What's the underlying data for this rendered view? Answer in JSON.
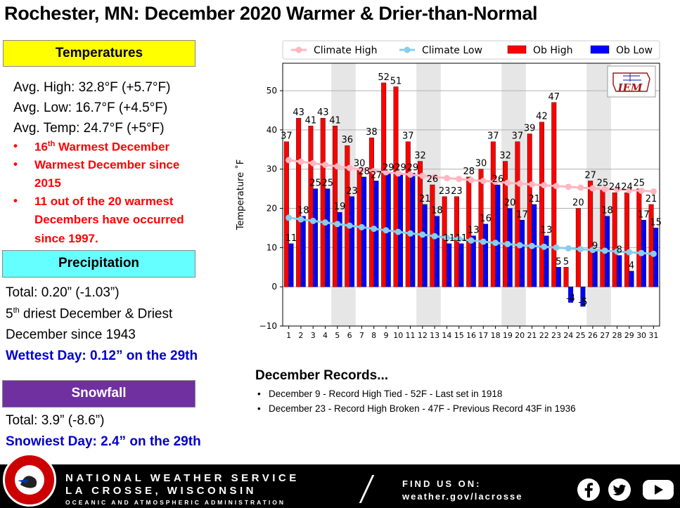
{
  "title": "Rochester, MN:  December 2020 Warmer & Drier-than-Normal",
  "temperatures": {
    "header": "Temperatures",
    "avg_high": "Avg. High:  32.8°F (+5.7°F)",
    "avg_low": "Avg. Low:  16.7°F (+4.5°F)",
    "avg_temp": "Avg. Temp:  24.7°F (+5°F)",
    "bullet1_num": "16",
    "bullet1_sup": "th",
    "bullet1_rest": " Warmest December",
    "bullet2_line1": "Warmest December since",
    "bullet2_line2": "2015",
    "bullet3_line1": "11 out of the 20 warmest",
    "bullet3_line2": "Decembers have occurred",
    "bullet3_line3": "since 1997."
  },
  "precipitation": {
    "header": "Precipitation",
    "total": "Total:  0.20” (-1.03”)",
    "line2_num": "5",
    "line2_sup": "th",
    "line2_rest": " driest December & Driest",
    "line3": "December since 1943",
    "wettest": "Wettest Day: 0.12” on the 29th"
  },
  "snowfall": {
    "header": "Snowfall",
    "total": "Total:  3.9” (-8.6”)",
    "snowiest": "Snowiest Day:  2.4” on the 29th"
  },
  "records": {
    "title": "December Records...",
    "items": [
      "December 9 - Record High Tied - 52F - Last set in 1918",
      "December 23 - Record High Broken - 47F - Previous Record 43F in 1936"
    ]
  },
  "footer": {
    "org": "NATIONAL WEATHER SERVICE",
    "location": "LA CROSSE, WISCONSIN",
    "subtitle": "OCEANIC AND ATMOSPHERIC ADMINISTRATION",
    "find_us": "FIND US ON:",
    "url": "weather.gov/lacrosse",
    "seal_top": "NATIONAL WEATHER SERVICE",
    "seal_bottom": "LA CROSSE, WI"
  },
  "chart_data": {
    "type": "bar",
    "categories": [
      "1",
      "2",
      "3",
      "4",
      "5",
      "6",
      "7",
      "8",
      "9",
      "10",
      "11",
      "12",
      "13",
      "14",
      "15",
      "16",
      "17",
      "18",
      "19",
      "20",
      "21",
      "22",
      "23",
      "24",
      "25",
      "26",
      "27",
      "28",
      "29",
      "30",
      "31"
    ],
    "series": [
      {
        "name": "Ob High",
        "color": "#ff0000",
        "values": [
          37,
          43,
          41,
          43,
          41,
          36,
          30,
          38,
          52,
          51,
          37,
          32,
          26,
          23,
          23,
          28,
          30,
          37,
          32,
          37,
          39,
          42,
          47,
          5,
          20,
          27,
          25,
          24,
          24,
          25,
          21
        ]
      },
      {
        "name": "Ob Low",
        "color": "#0000ff",
        "values": [
          11,
          18,
          25,
          25,
          19,
          23,
          28,
          27,
          29,
          29,
          29,
          21,
          18,
          11,
          11,
          13,
          16,
          26,
          20,
          17,
          21,
          13,
          5,
          -4,
          -5,
          9,
          18,
          8,
          4,
          17,
          15
        ]
      },
      {
        "name": "Climate High",
        "color": "#ffb6c1",
        "values": [
          32.3,
          31.9,
          31.5,
          31.1,
          30.7,
          30.3,
          29.9,
          29.5,
          29.2,
          28.9,
          28.6,
          28.3,
          28.0,
          27.7,
          27.5,
          27.2,
          27.0,
          26.8,
          26.5,
          26.3,
          26.1,
          25.9,
          25.7,
          25.5,
          25.3,
          25.1,
          24.9,
          24.8,
          24.6,
          24.5,
          24.3
        ]
      },
      {
        "name": "Climate Low",
        "color": "#87ceeb",
        "values": [
          17.6,
          17.2,
          16.8,
          16.4,
          16.0,
          15.6,
          15.2,
          14.8,
          14.4,
          14.0,
          13.6,
          13.3,
          12.9,
          12.5,
          12.2,
          11.8,
          11.5,
          11.2,
          10.9,
          10.6,
          10.4,
          10.2,
          10.0,
          9.8,
          9.6,
          9.4,
          9.2,
          9.0,
          8.8,
          8.6,
          8.4
        ]
      }
    ],
    "legend": [
      "Climate High",
      "Climate Low",
      "Ob High",
      "Ob Low"
    ],
    "ylabel": "Temperature ˚F",
    "xlabel": "",
    "ylim": [
      -10,
      57
    ],
    "yticks": [
      -10,
      0,
      10,
      20,
      30,
      40,
      50
    ],
    "weekend_shading": [
      [
        5,
        6
      ],
      [
        12,
        13
      ],
      [
        19,
        20
      ],
      [
        26,
        27
      ]
    ],
    "legend_position": "top",
    "grid": "horizontal",
    "logo_text": "IEM"
  }
}
